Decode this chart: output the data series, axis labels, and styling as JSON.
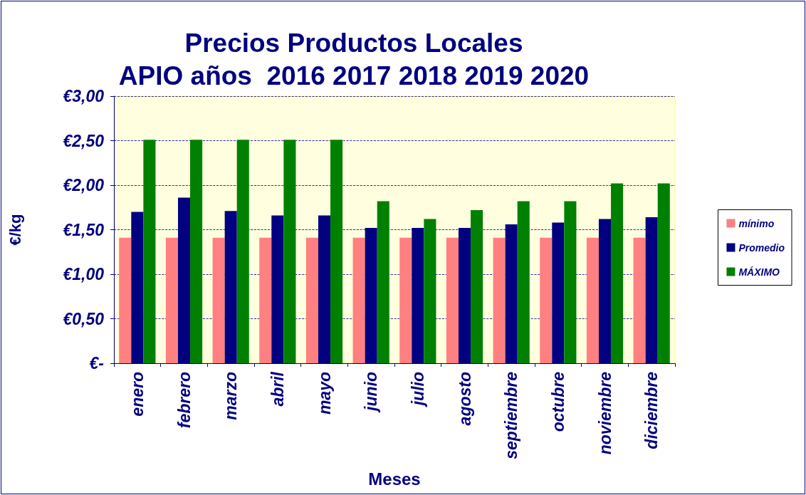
{
  "chart_data": {
    "type": "bar",
    "title": "Precios Productos Locales\nAPIO años  2016 2017 2018 2019 2020",
    "xlabel": "Meses",
    "ylabel": "€/kg",
    "categories": [
      "enero",
      "febrero",
      "marzo",
      "abril",
      "mayo",
      "junio",
      "julio",
      "agosto",
      "septiembre",
      "octubre",
      "noviembre",
      "diciembre"
    ],
    "series": [
      {
        "name": "mínimo",
        "color": "#ff8080",
        "values": [
          1.41,
          1.41,
          1.41,
          1.41,
          1.41,
          1.41,
          1.41,
          1.41,
          1.41,
          1.41,
          1.41,
          1.41
        ]
      },
      {
        "name": "Promedio",
        "color": "#000080",
        "values": [
          1.7,
          1.86,
          1.71,
          1.66,
          1.66,
          1.52,
          1.52,
          1.52,
          1.56,
          1.58,
          1.62,
          1.64
        ]
      },
      {
        "name": "MÁXIMO",
        "color": "#008000",
        "values": [
          2.51,
          2.51,
          2.51,
          2.51,
          2.51,
          1.82,
          1.62,
          1.72,
          1.82,
          1.82,
          2.02,
          2.02
        ]
      }
    ],
    "ylim": [
      0,
      3
    ],
    "yticks": [
      {
        "value": 0,
        "label": "€-"
      },
      {
        "value": 0.5,
        "label": "€0,50"
      },
      {
        "value": 1,
        "label": "€1,00"
      },
      {
        "value": 1.5,
        "label": "€1,50"
      },
      {
        "value": 2,
        "label": "€2,00"
      },
      {
        "value": 2.5,
        "label": "€2,50"
      },
      {
        "value": 3,
        "label": "€3,00"
      }
    ],
    "grid": "y",
    "legend": "right"
  }
}
